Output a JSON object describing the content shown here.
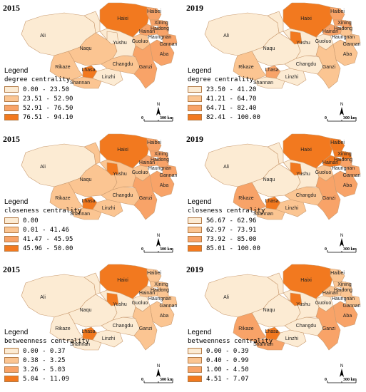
{
  "colors": {
    "c1": "#fcebd3",
    "c2": "#fbc592",
    "c3": "#f8a368",
    "c4": "#f2791f",
    "border": "#c99a6f"
  },
  "scale": {
    "zero": "0",
    "dist": "300 km",
    "north": "N"
  },
  "panels": [
    {
      "year": "2015",
      "legend_title": "Legend",
      "metric": "degree centrality",
      "classes": [
        "0.00 - 23.50",
        "23.51 - 52.90",
        "52.91 - 76.50",
        "76.51 - 94.10"
      ],
      "regions": {
        "Ali": 1,
        "Naqu": 2,
        "Rikaze": 2,
        "Lhasa": 4,
        "Shannan": 2,
        "Linzhi": 1,
        "Changdu": 2,
        "Yushu": 1,
        "Haixi": 4,
        "Haibei": 3,
        "Xining": 3,
        "Haidong": 3,
        "Hainan": 3,
        "Huangnan": 3,
        "Guoluo": 2,
        "Gannan": 3,
        "Aba": 3,
        "Ganzi": 3,
        "Golmud": 1,
        "Nagqu_E": 1
      }
    },
    {
      "year": "2019",
      "legend_title": "Legend",
      "metric": "degree centrality",
      "classes": [
        "23.50 - 41.20",
        "41.21 - 64.70",
        "64.71 - 82.40",
        "82.41 - 100.00"
      ],
      "regions": {
        "Ali": 1,
        "Naqu": 1,
        "Rikaze": 2,
        "Lhasa": 3,
        "Shannan": 1,
        "Linzhi": 1,
        "Changdu": 1,
        "Yushu": 1,
        "Haixi": 4,
        "Haibei": 3,
        "Xining": 3,
        "Haidong": 3,
        "Hainan": 3,
        "Huangnan": 2,
        "Guoluo": 1,
        "Gannan": 2,
        "Aba": 2,
        "Ganzi": 2,
        "Golmud": 4,
        "Nagqu_E": 1
      }
    },
    {
      "year": "2015",
      "legend_title": "Legend",
      "metric": "closeness centrality",
      "classes": [
        "0.00",
        "0.01 - 41.46",
        "41.47 - 45.95",
        "45.96 - 50.00"
      ],
      "regions": {
        "Ali": 1,
        "Naqu": 2,
        "Rikaze": 2,
        "Lhasa": 4,
        "Shannan": 2,
        "Linzhi": 2,
        "Changdu": 2,
        "Yushu": 2,
        "Haixi": 4,
        "Haibei": 3,
        "Xining": 3,
        "Haidong": 3,
        "Hainan": 3,
        "Huangnan": 3,
        "Guoluo": 2,
        "Gannan": 3,
        "Aba": 3,
        "Ganzi": 3,
        "Golmud": 4,
        "Nagqu_E": 2
      }
    },
    {
      "year": "2019",
      "legend_title": "Legend",
      "metric": "closeness centrality",
      "classes": [
        "56.67 - 62.96",
        "62.97 - 73.91",
        "73.92 - 85.00",
        "85.01 - 100.00"
      ],
      "regions": {
        "Ali": 1,
        "Naqu": 1,
        "Rikaze": 3,
        "Lhasa": 4,
        "Shannan": 2,
        "Linzhi": 2,
        "Changdu": 2,
        "Yushu": 1,
        "Haixi": 4,
        "Haibei": 4,
        "Xining": 4,
        "Haidong": 4,
        "Hainan": 4,
        "Huangnan": 3,
        "Guoluo": 2,
        "Gannan": 3,
        "Aba": 3,
        "Ganzi": 3,
        "Golmud": 4,
        "Nagqu_E": 1
      }
    },
    {
      "year": "2015",
      "legend_title": "Legend",
      "metric": "betweenness centrality",
      "classes": [
        "0.00 - 0.37",
        "0.38 - 3.25",
        "3.26 - 5.03",
        "5.04 - 11.09"
      ],
      "regions": {
        "Ali": 1,
        "Naqu": 1,
        "Rikaze": 1,
        "Lhasa": 4,
        "Shannan": 1,
        "Linzhi": 1,
        "Changdu": 1,
        "Yushu": 1,
        "Haixi": 4,
        "Haibei": 2,
        "Xining": 2,
        "Haidong": 2,
        "Hainan": 2,
        "Huangnan": 2,
        "Guoluo": 1,
        "Gannan": 2,
        "Aba": 2,
        "Ganzi": 2,
        "Golmud": 4,
        "Nagqu_E": 1
      }
    },
    {
      "year": "2019",
      "legend_title": "Legend",
      "metric": "betweenness centrality",
      "classes": [
        "0.00 - 0.39",
        "0.40 - 0.99",
        "1.00 - 4.50",
        "4.51 - 7.07"
      ],
      "regions": {
        "Ali": 1,
        "Naqu": 1,
        "Rikaze": 3,
        "Lhasa": 4,
        "Shannan": 3,
        "Linzhi": 1,
        "Changdu": 1,
        "Yushu": 1,
        "Haixi": 4,
        "Haibei": 2,
        "Xining": 2,
        "Haidong": 2,
        "Hainan": 2,
        "Huangnan": 2,
        "Guoluo": 1,
        "Gannan": 2,
        "Aba": 3,
        "Ganzi": 3,
        "Golmud": 4,
        "Nagqu_E": 1
      }
    }
  ]
}
